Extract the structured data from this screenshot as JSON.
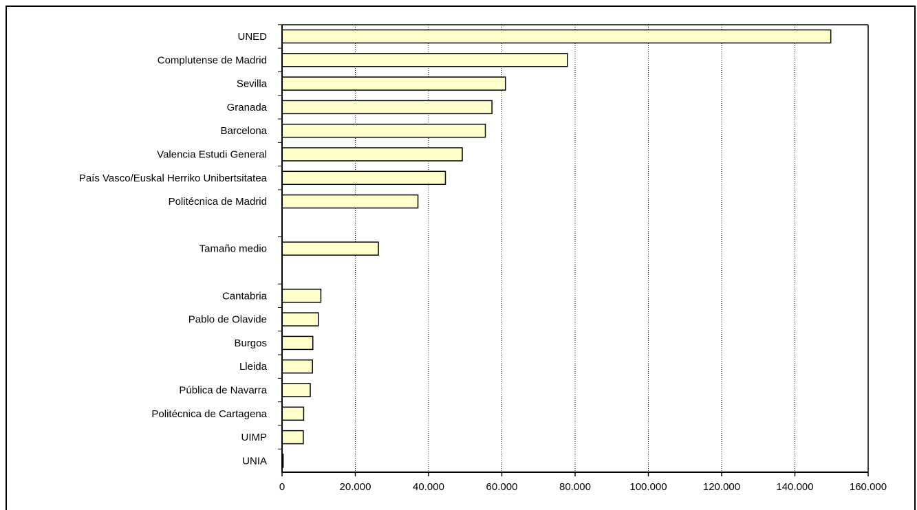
{
  "chart_data": {
    "type": "bar",
    "orientation": "horizontal",
    "title": "",
    "xlabel": "",
    "ylabel": "",
    "categories": [
      "UNED",
      "Complutense de Madrid",
      "Sevilla",
      "Granada",
      "Barcelona",
      "Valencia Estudi General",
      "País Vasco/Euskal Herriko Unibertsitatea",
      "Politécnica de Madrid",
      "",
      "Tamaño medio",
      "",
      "Cantabria",
      "Pablo de Olavide",
      "Burgos",
      "Lleida",
      "Pública de Navarra",
      "Politécnica de Cartagena",
      "UIMP",
      "UNIA"
    ],
    "values": [
      149800,
      77900,
      61000,
      57300,
      55500,
      49200,
      44600,
      37100,
      null,
      26300,
      null,
      10600,
      9900,
      8400,
      8300,
      7700,
      5900,
      5800,
      300
    ],
    "xlim": [
      0,
      160000
    ],
    "xticks": [
      0,
      20000,
      40000,
      60000,
      80000,
      100000,
      120000,
      140000,
      160000
    ],
    "xtick_labels": [
      "0",
      "20.000",
      "40.000",
      "60.000",
      "80.000",
      "100.000",
      "120.000",
      "140.000",
      "160.000"
    ],
    "grid": "vertical-dotted",
    "legend": "none",
    "bar_color": "#FFFFCC",
    "bar_edge_color": "#000000"
  }
}
